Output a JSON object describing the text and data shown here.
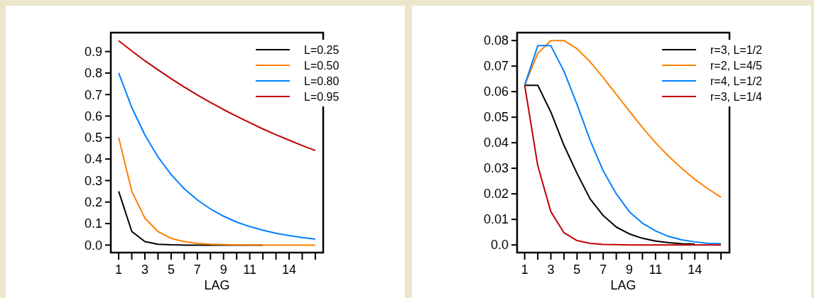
{
  "chart_data": [
    {
      "type": "line",
      "xlabel": "LAG",
      "x": [
        1,
        2,
        3,
        4,
        5,
        6,
        7,
        8,
        9,
        10,
        11,
        12,
        13,
        14,
        15,
        16
      ],
      "xlim": [
        0.4,
        16.6
      ],
      "ylim": [
        -0.035,
        0.988
      ],
      "xticks": [
        1,
        {
          "value": 2,
          "label": null
        },
        3,
        {
          "value": 4,
          "label": null
        },
        5,
        {
          "value": 6,
          "label": null
        },
        7,
        {
          "value": 8,
          "label": null
        },
        9,
        {
          "value": 10,
          "label": null
        },
        11,
        {
          "value": 12,
          "label": null
        },
        {
          "value": 13,
          "label": null
        },
        14,
        {
          "value": 15,
          "label": null
        },
        {
          "value": 16,
          "label": null
        }
      ],
      "yticks": [
        {
          "value": 0,
          "label": "0.0"
        },
        0.1,
        0.2,
        0.3,
        0.4,
        0.5,
        0.6,
        0.7,
        0.8,
        0.9
      ],
      "legend": "top right",
      "grid": false,
      "marker": "none",
      "line_style": "solid",
      "series": [
        {
          "name": "L=0.25",
          "color": "#000000",
          "values": [
            0.25,
            0.063,
            0.016,
            0.004,
            0.001,
            0,
            0,
            0,
            0,
            0,
            0,
            0,
            null,
            null,
            null,
            null
          ]
        },
        {
          "name": "L=0.50",
          "color": "#ff8000",
          "values": [
            0.5,
            0.25,
            0.125,
            0.063,
            0.031,
            0.016,
            0.008,
            0.004,
            0.002,
            0.001,
            0,
            0,
            0,
            0,
            0,
            0
          ]
        },
        {
          "name": "L=0.80",
          "color": "#0080ff",
          "values": [
            0.8,
            0.64,
            0.512,
            0.41,
            0.328,
            0.262,
            0.21,
            0.168,
            0.134,
            0.107,
            0.086,
            0.069,
            0.055,
            0.044,
            0.035,
            0.028
          ]
        },
        {
          "name": "L=0.95",
          "color": "#c00000",
          "values": [
            0.95,
            0.903,
            0.857,
            0.815,
            0.774,
            0.735,
            0.698,
            0.663,
            0.63,
            0.599,
            0.569,
            0.54,
            0.513,
            0.488,
            0.463,
            0.44
          ]
        }
      ]
    },
    {
      "type": "line",
      "xlabel": "LAG",
      "x": [
        1,
        2,
        3,
        4,
        5,
        6,
        7,
        8,
        9,
        10,
        11,
        12,
        13,
        14,
        15,
        16
      ],
      "xlim": [
        0.42,
        16.65
      ],
      "ylim": [
        -0.003,
        0.0831
      ],
      "xticks": [
        1,
        {
          "value": 2,
          "label": null
        },
        3,
        {
          "value": 4,
          "label": null
        },
        5,
        {
          "value": 6,
          "label": null
        },
        7,
        {
          "value": 8,
          "label": null
        },
        9,
        {
          "value": 10,
          "label": null
        },
        11,
        {
          "value": 12,
          "label": null
        },
        {
          "value": 13,
          "label": null
        },
        14,
        {
          "value": 15,
          "label": null
        },
        {
          "value": 16,
          "label": null
        }
      ],
      "yticks": [
        {
          "value": 0,
          "label": "0.0"
        },
        0.01,
        0.02,
        0.03,
        0.04,
        0.05,
        0.06,
        0.07,
        0.08
      ],
      "legend": "top right",
      "grid": false,
      "marker": "none",
      "line_style": "solid",
      "series": [
        {
          "name": "r=3, L=1/2",
          "color": "#000000",
          "values": [
            0.0625,
            0.0625,
            0.052,
            0.039,
            0.028,
            0.018,
            0.0115,
            0.007,
            0.0043,
            0.0026,
            0.0015,
            0.0009,
            0.0005,
            0.0003,
            null,
            null
          ]
        },
        {
          "name": "r=2, L=4/5",
          "color": "#ff8000",
          "values": [
            0.0625,
            0.075,
            0.08,
            0.08,
            0.0768,
            0.0717,
            0.0655,
            0.059,
            0.0524,
            0.046,
            0.04,
            0.0347,
            0.03,
            0.0257,
            0.022,
            0.0187
          ]
        },
        {
          "name": "r=4, L=1/2",
          "color": "#0080ff",
          "values": [
            0.0625,
            0.078,
            0.078,
            0.068,
            0.055,
            0.041,
            0.029,
            0.02,
            0.013,
            0.0085,
            0.0055,
            0.0033,
            0.002,
            0.0012,
            0.0006,
            0.0005
          ]
        },
        {
          "name": "r=3, L=1/4",
          "color": "#c00000",
          "values": [
            0.0625,
            0.031,
            0.013,
            0.0048,
            0.0017,
            0.0006,
            0.0002,
            0.0001,
            0,
            0,
            0,
            0,
            0,
            0,
            0,
            0
          ]
        }
      ]
    }
  ]
}
